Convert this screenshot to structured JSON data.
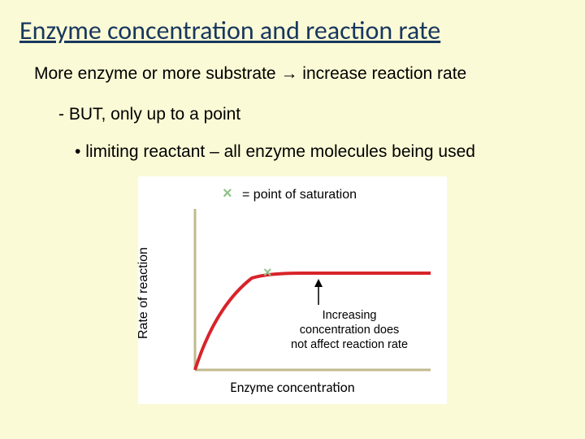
{
  "title": "Enzyme concentration and reaction rate",
  "bullet1": "More enzyme or more substrate → increase reaction rate",
  "bullet2": "BUT, only up to a point",
  "bullet3": "limiting reactant – all enzyme molecules being used",
  "chart": {
    "type": "line",
    "background_color": "#ffffff",
    "axis_color": "#c1b98e",
    "axis_width": 3,
    "curve_color": "#d8232a",
    "curve_width": 4,
    "saturation_marker": {
      "symbol": "×",
      "color": "#8fc38a",
      "fontsize": 18
    },
    "legend_text": "= point of saturation",
    "legend_fontsize": 16,
    "y_label": "Rate of reaction",
    "x_label": "Enzyme concentration",
    "annotation": "Increasing\nconcentration does\nnot affect reaction rate",
    "annotation_fontsize": 14.5,
    "arrow_color": "#000000",
    "curve_points": [
      [
        70,
        238
      ],
      [
        80,
        210
      ],
      [
        95,
        170
      ],
      [
        115,
        140
      ],
      [
        140,
        125
      ],
      [
        165,
        120
      ],
      [
        200,
        119
      ],
      [
        360,
        119
      ]
    ],
    "saturation_point": [
      160,
      118
    ],
    "xlim": [
      70,
      360
    ],
    "ylim": [
      238,
      40
    ]
  }
}
